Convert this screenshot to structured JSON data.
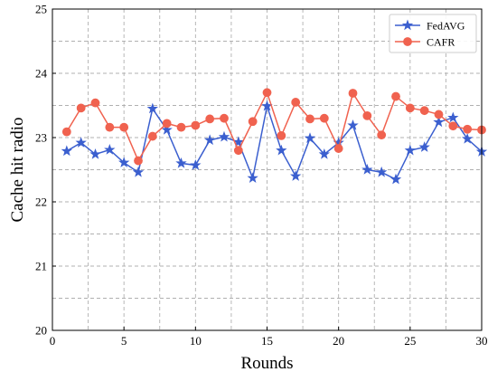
{
  "chart_data": {
    "type": "line",
    "xlabel": "Rounds",
    "ylabel": "Cache hit radio",
    "xlim": [
      0,
      30
    ],
    "ylim": [
      20,
      25
    ],
    "x_ticks": [
      0,
      5,
      10,
      15,
      20,
      25,
      30
    ],
    "y_ticks": [
      20,
      21,
      22,
      23,
      24,
      25
    ],
    "grid": true,
    "legend_position": "top-right",
    "x": [
      1,
      2,
      3,
      4,
      5,
      6,
      7,
      8,
      9,
      10,
      11,
      12,
      13,
      14,
      15,
      16,
      17,
      18,
      19,
      20,
      21,
      22,
      23,
      24,
      25,
      26,
      27,
      28,
      29,
      30
    ],
    "series": [
      {
        "name": "FedAVG",
        "color": "#3b5fcf",
        "marker": "star",
        "values": [
          22.79,
          22.92,
          22.74,
          22.81,
          22.61,
          22.46,
          23.45,
          23.12,
          22.6,
          22.57,
          22.96,
          23.01,
          22.93,
          22.37,
          23.49,
          22.8,
          22.4,
          22.99,
          22.74,
          22.92,
          23.19,
          22.5,
          22.46,
          22.35,
          22.8,
          22.85,
          23.24,
          23.31,
          22.98,
          22.78
        ]
      },
      {
        "name": "CAFR",
        "color": "#f0624f",
        "marker": "circle",
        "values": [
          23.09,
          23.46,
          23.54,
          23.16,
          23.16,
          22.64,
          23.02,
          23.22,
          23.16,
          23.19,
          23.29,
          23.3,
          22.8,
          23.25,
          23.7,
          23.03,
          23.55,
          23.29,
          23.3,
          22.83,
          23.69,
          23.34,
          23.04,
          23.64,
          23.46,
          23.42,
          23.36,
          23.18,
          23.13,
          23.12
        ]
      }
    ]
  }
}
